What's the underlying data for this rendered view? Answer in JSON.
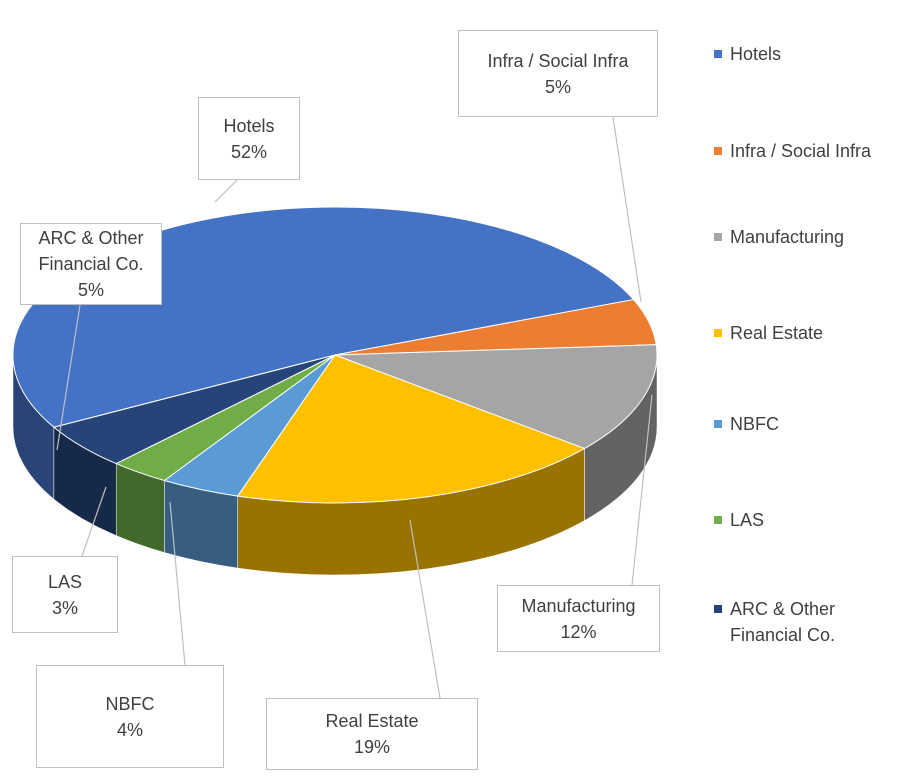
{
  "chart_data": {
    "type": "pie",
    "categories": [
      "Hotels",
      "Infra / Social Infra",
      "Manufacturing",
      "Real Estate",
      "NBFC",
      "LAS",
      "ARC & Other Financial Co."
    ],
    "values": [
      52,
      5,
      12,
      19,
      4,
      3,
      5
    ],
    "value_labels": [
      "52%",
      "5%",
      "12%",
      "19%",
      "4%",
      "3%",
      "5%"
    ],
    "colors": [
      "#4472c4",
      "#ed7d31",
      "#a5a5a5",
      "#ffc000",
      "#5b9bd5",
      "#70ad47",
      "#264478"
    ],
    "legend": "right"
  }
}
